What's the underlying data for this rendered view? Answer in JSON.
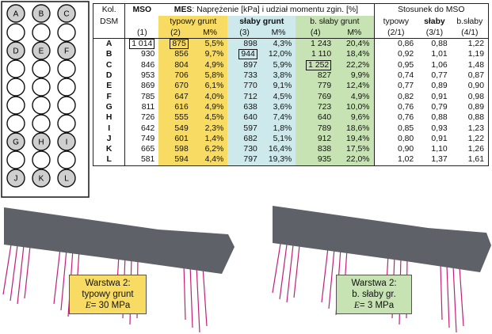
{
  "diagram": {
    "piles": [
      {
        "row": 0,
        "col": 0,
        "label": "A"
      },
      {
        "row": 0,
        "col": 1,
        "label": "B"
      },
      {
        "row": 0,
        "col": 2,
        "label": "C"
      },
      {
        "row": 1,
        "col": 0,
        "label": ""
      },
      {
        "row": 1,
        "col": 1,
        "label": ""
      },
      {
        "row": 1,
        "col": 2,
        "label": ""
      },
      {
        "row": 2,
        "col": 0,
        "label": "D"
      },
      {
        "row": 2,
        "col": 1,
        "label": "E"
      },
      {
        "row": 2,
        "col": 2,
        "label": "F"
      },
      {
        "row": 3,
        "col": 0,
        "label": ""
      },
      {
        "row": 3,
        "col": 1,
        "label": ""
      },
      {
        "row": 3,
        "col": 2,
        "label": ""
      },
      {
        "row": 4,
        "col": 0,
        "label": ""
      },
      {
        "row": 4,
        "col": 1,
        "label": ""
      },
      {
        "row": 4,
        "col": 2,
        "label": ""
      },
      {
        "row": 5,
        "col": 0,
        "label": ""
      },
      {
        "row": 5,
        "col": 1,
        "label": ""
      },
      {
        "row": 5,
        "col": 2,
        "label": ""
      },
      {
        "row": 6,
        "col": 0,
        "label": ""
      },
      {
        "row": 6,
        "col": 1,
        "label": ""
      },
      {
        "row": 6,
        "col": 2,
        "label": ""
      },
      {
        "row": 7,
        "col": 0,
        "label": "G"
      },
      {
        "row": 7,
        "col": 1,
        "label": "H"
      },
      {
        "row": 7,
        "col": 2,
        "label": "I"
      },
      {
        "row": 8,
        "col": 0,
        "label": ""
      },
      {
        "row": 8,
        "col": 1,
        "label": ""
      },
      {
        "row": 8,
        "col": 2,
        "label": ""
      },
      {
        "row": 9,
        "col": 0,
        "label": "J"
      },
      {
        "row": 9,
        "col": 1,
        "label": "K"
      },
      {
        "row": 9,
        "col": 2,
        "label": "L"
      }
    ]
  },
  "table": {
    "header": {
      "kol_line1": "Kol.",
      "kol_line2": "DSM",
      "mso": "MSO",
      "mes_bold": "MES",
      "mes_rest": ": Naprężenie [kPa] i udział momentu zgin. [%]",
      "stosunek": "Stosunek do MSO",
      "typowy_grunt": "typowy grunt",
      "slaby_grunt": "słaby grunt",
      "b_slaby_grunt": "b. słaby grunt",
      "typowy": "typowy",
      "slaby": "słaby",
      "b_slaby": "b.słaby",
      "num_1": "(1)",
      "num_2": "(2)",
      "pct_2": "M%",
      "num_3": "(3)",
      "pct_3": "M%",
      "num_4": "(4)",
      "pct_4": "M%",
      "ratio_21": "(2/1)",
      "ratio_31": "(3/1)",
      "ratio_41": "(4/1)"
    },
    "rows": [
      {
        "col": "A",
        "mso": "1 014",
        "t": "875",
        "tp": "5,5%",
        "s": "898",
        "sp": "4,3%",
        "b": "1 243",
        "bp": "20,4%",
        "r21": "0,86",
        "r31": "0,88",
        "r41": "1,22",
        "box_mso": true,
        "box_t": true
      },
      {
        "col": "B",
        "mso": "930",
        "t": "856",
        "tp": "9,7%",
        "s": "944",
        "sp": "12,0%",
        "b": "1 110",
        "bp": "18,4%",
        "r21": "0,92",
        "r31": "1,01",
        "r41": "1,19",
        "box_s": true
      },
      {
        "col": "C",
        "mso": "846",
        "t": "804",
        "tp": "4,9%",
        "s": "897",
        "sp": "5,9%",
        "b": "1 252",
        "bp": "22,2%",
        "r21": "0,95",
        "r31": "1,06",
        "r41": "1,48",
        "box_b": true
      },
      {
        "col": "D",
        "mso": "953",
        "t": "706",
        "tp": "5,8%",
        "s": "733",
        "sp": "3,8%",
        "b": "827",
        "bp": "9,9%",
        "r21": "0,74",
        "r31": "0,77",
        "r41": "0,87"
      },
      {
        "col": "E",
        "mso": "869",
        "t": "670",
        "tp": "6,1%",
        "s": "770",
        "sp": "9,1%",
        "b": "779",
        "bp": "12,4%",
        "r21": "0,77",
        "r31": "0,89",
        "r41": "0,90"
      },
      {
        "col": "F",
        "mso": "785",
        "t": "647",
        "tp": "4,0%",
        "s": "712",
        "sp": "4,5%",
        "b": "769",
        "bp": "4,9%",
        "r21": "0,82",
        "r31": "0,91",
        "r41": "0,98"
      },
      {
        "col": "G",
        "mso": "811",
        "t": "616",
        "tp": "4,9%",
        "s": "638",
        "sp": "3,6%",
        "b": "723",
        "bp": "10,0%",
        "r21": "0,76",
        "r31": "0,79",
        "r41": "0,89"
      },
      {
        "col": "H",
        "mso": "726",
        "t": "555",
        "tp": "4,5%",
        "s": "640",
        "sp": "7,4%",
        "b": "640",
        "bp": "9,6%",
        "r21": "0,76",
        "r31": "0,88",
        "r41": "0,88"
      },
      {
        "col": "I",
        "mso": "642",
        "t": "549",
        "tp": "2,3%",
        "s": "597",
        "sp": "1,8%",
        "b": "789",
        "bp": "18,6%",
        "r21": "0,85",
        "r31": "0,93",
        "r41": "1,23"
      },
      {
        "col": "J",
        "mso": "749",
        "t": "601",
        "tp": "1,4%",
        "s": "682",
        "sp": "5,1%",
        "b": "912",
        "bp": "19,4%",
        "r21": "0,80",
        "r31": "0,91",
        "r41": "1,22"
      },
      {
        "col": "K",
        "mso": "665",
        "t": "598",
        "tp": "6,2%",
        "s": "730",
        "sp": "16,4%",
        "b": "838",
        "bp": "17,5%",
        "r21": "0,90",
        "r31": "1,10",
        "r41": "1,26"
      },
      {
        "col": "L",
        "mso": "581",
        "t": "594",
        "tp": "4,4%",
        "s": "797",
        "sp": "19,3%",
        "b": "935",
        "bp": "22,0%",
        "r21": "1,02",
        "r31": "1,37",
        "r41": "1,61"
      }
    ]
  },
  "models": {
    "left": {
      "line1": "Warstwa 2:",
      "line2": "typowy grunt",
      "e_symbol": "E",
      "e_value": "= 30 MPa",
      "box_color": "#f8db63"
    },
    "right": {
      "line1": "Warstwa 2:",
      "line2": "b. słaby gr.",
      "e_symbol": "E",
      "e_value": "= 3 MPa",
      "box_color": "#c8e3b3"
    },
    "slab_color": "#5f6168",
    "column_color": "#c0207a"
  }
}
